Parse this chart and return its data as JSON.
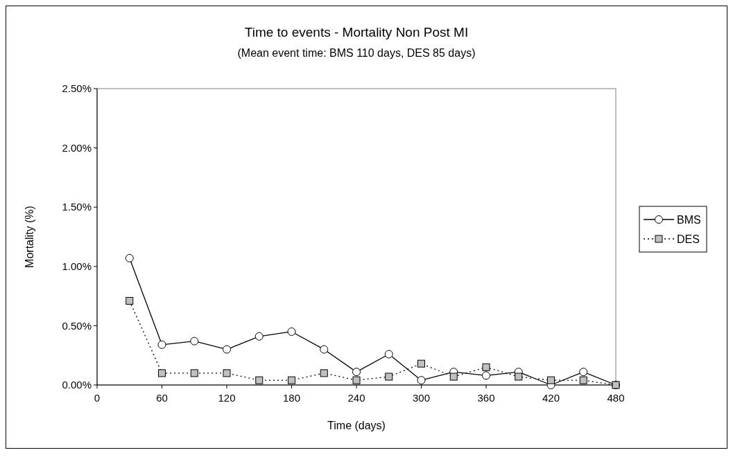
{
  "chart_data": {
    "type": "line",
    "title": "Time to events - Mortality Non Post MI",
    "subtitle": "(Mean event time:  BMS 110 days, DES 85 days)",
    "xlabel": "Time (days)",
    "ylabel": "Mortality (%)",
    "x": [
      30,
      60,
      90,
      120,
      150,
      180,
      210,
      240,
      270,
      300,
      330,
      360,
      390,
      420,
      450,
      480
    ],
    "series": [
      {
        "name": "BMS",
        "color": "#000000",
        "marker": "circle",
        "line_style": "solid",
        "values": [
          1.07,
          0.34,
          0.37,
          0.3,
          0.41,
          0.45,
          0.3,
          0.11,
          0.26,
          0.04,
          0.11,
          0.08,
          0.11,
          0.0,
          0.11,
          0.0
        ]
      },
      {
        "name": "DES",
        "color": "#000000",
        "marker": "square",
        "line_style": "dotted",
        "values": [
          0.71,
          0.1,
          0.1,
          0.1,
          0.04,
          0.04,
          0.1,
          0.04,
          0.07,
          0.18,
          0.07,
          0.15,
          0.07,
          0.04,
          0.04,
          0.0
        ]
      }
    ],
    "xlim": [
      0,
      480
    ],
    "xticks": [
      0,
      60,
      120,
      180,
      240,
      300,
      360,
      420,
      480
    ],
    "ylim": [
      0,
      2.5
    ],
    "yticks": [
      {
        "value": 0,
        "label": "0.00%"
      },
      {
        "value": 0.5,
        "label": "0.50%"
      },
      {
        "value": 1,
        "label": "1.00%"
      },
      {
        "value": 1.5,
        "label": "1.50%"
      },
      {
        "value": 2,
        "label": "2.00%"
      },
      {
        "value": 2.5,
        "label": "2.50%"
      }
    ],
    "grid": false,
    "legend": "right"
  }
}
